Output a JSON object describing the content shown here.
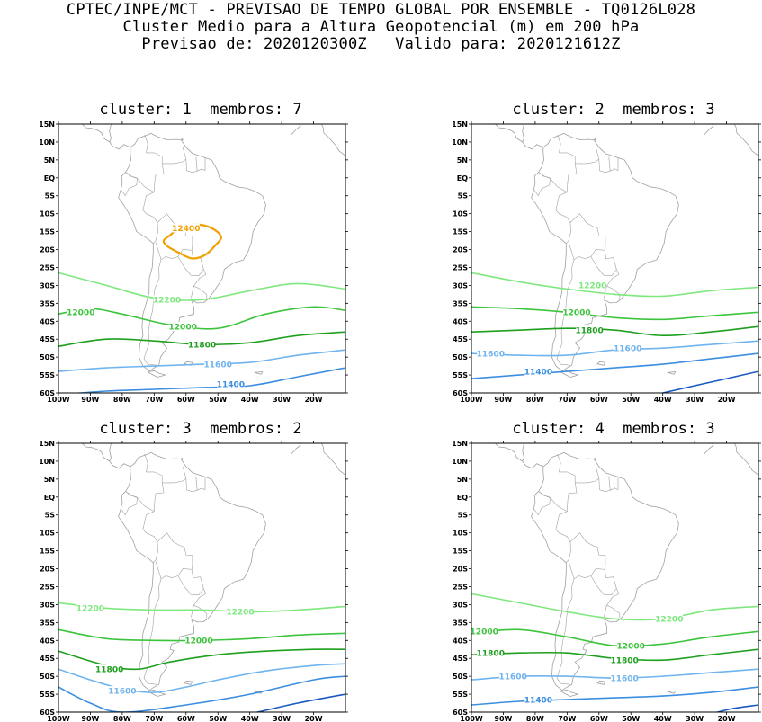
{
  "header": {
    "line1": "CPTEC/INPE/MCT - PREVISAO DE TEMPO GLOBAL POR ENSEMBLE - TQ0126L028",
    "line2": "Cluster Medio para a Altura Geopotencial (m) em 200 hPa",
    "line3": "Previsao de: 2020120300Z   Valido para: 2020121612Z"
  },
  "axes": {
    "lat_labels": [
      "15N",
      "10N",
      "5N",
      "EQ",
      "5S",
      "10S",
      "15S",
      "20S",
      "25S",
      "30S",
      "35S",
      "40S",
      "45S",
      "50S",
      "55S",
      "60S"
    ],
    "lon_labels": [
      "100W",
      "90W",
      "80W",
      "70W",
      "60W",
      "50W",
      "40W",
      "30W",
      "20W"
    ]
  },
  "colors": {
    "c12400": "#f0a000",
    "c12200": "#7ee87e",
    "c12000": "#3cc43c",
    "c11800": "#1ea01e",
    "c11600": "#6fb4ee",
    "c11400": "#3c8ee0",
    "c11200": "#1a5ac0",
    "coast": "#a0a0a0"
  },
  "panels": [
    {
      "title": "cluster: 1  membros: 7",
      "contours": [
        {
          "value": "12400",
          "color_key": "c12400",
          "closed": true,
          "points": [
            [
              -65,
              -16
            ],
            [
              -62,
              -14
            ],
            [
              -57,
              -13
            ],
            [
              -52,
              -14
            ],
            [
              -49,
              -16.5
            ],
            [
              -51,
              -19
            ],
            [
              -54,
              -21.5
            ],
            [
              -58,
              -22.5
            ],
            [
              -62,
              -21
            ],
            [
              -66,
              -19
            ],
            [
              -67,
              -17.5
            ]
          ]
        },
        {
          "value": "12200",
          "color_key": "c12200",
          "points": [
            [
              -100,
              -26.5
            ],
            [
              -85,
              -30
            ],
            [
              -70,
              -33.5
            ],
            [
              -55,
              -34
            ],
            [
              -40,
              -31.5
            ],
            [
              -25,
              -29.5
            ],
            [
              -10,
              -31
            ]
          ]
        },
        {
          "value": "12000",
          "color_key": "c12000",
          "points": [
            [
              -100,
              -38
            ],
            [
              -90,
              -36.5
            ],
            [
              -80,
              -38
            ],
            [
              -65,
              -41
            ],
            [
              -50,
              -42
            ],
            [
              -35,
              -38
            ],
            [
              -20,
              -36
            ],
            [
              -10,
              -37
            ]
          ]
        },
        {
          "value": "11800",
          "color_key": "c11800",
          "points": [
            [
              -100,
              -47
            ],
            [
              -85,
              -45
            ],
            [
              -70,
              -45.5
            ],
            [
              -55,
              -46.5
            ],
            [
              -40,
              -46
            ],
            [
              -25,
              -44
            ],
            [
              -10,
              -43
            ]
          ]
        },
        {
          "value": "11600",
          "color_key": "c11600",
          "points": [
            [
              -100,
              -54
            ],
            [
              -85,
              -53
            ],
            [
              -70,
              -52.5
            ],
            [
              -55,
              -52
            ],
            [
              -40,
              -51.5
            ],
            [
              -25,
              -49.5
            ],
            [
              -10,
              -48
            ]
          ]
        },
        {
          "value": "11400",
          "color_key": "c11400",
          "points": [
            [
              -100,
              -60.5
            ],
            [
              -85,
              -59.5
            ],
            [
              -70,
              -59
            ],
            [
              -55,
              -58.5
            ],
            [
              -40,
              -58
            ],
            [
              -25,
              -55.5
            ],
            [
              -10,
              -53
            ]
          ]
        }
      ],
      "labels": [
        {
          "text": "12400",
          "lon": -60,
          "lat": -14,
          "color_key": "c12400"
        },
        {
          "text": "12200",
          "lon": -66,
          "lat": -34,
          "color_key": "c12200"
        },
        {
          "text": "12000",
          "lon": -93,
          "lat": -37.5,
          "color_key": "c12000"
        },
        {
          "text": "12000",
          "lon": -61,
          "lat": -41.5,
          "color_key": "c12000"
        },
        {
          "text": "11800",
          "lon": -55,
          "lat": -46.5,
          "color_key": "c11800"
        },
        {
          "text": "11600",
          "lon": -50,
          "lat": -52,
          "color_key": "c11600"
        },
        {
          "text": "11400",
          "lon": -46,
          "lat": -57.5,
          "color_key": "c11400"
        }
      ]
    },
    {
      "title": "cluster: 2  membros: 3",
      "contours": [
        {
          "value": "12200",
          "color_key": "c12200",
          "points": [
            [
              -100,
              -26.5
            ],
            [
              -85,
              -29
            ],
            [
              -70,
              -31
            ],
            [
              -55,
              -32.5
            ],
            [
              -40,
              -33
            ],
            [
              -25,
              -31.5
            ],
            [
              -10,
              -30.5
            ]
          ]
        },
        {
          "value": "12000",
          "color_key": "c12000",
          "points": [
            [
              -100,
              -36
            ],
            [
              -85,
              -36.5
            ],
            [
              -70,
              -37.5
            ],
            [
              -55,
              -39
            ],
            [
              -40,
              -39.5
            ],
            [
              -25,
              -38.5
            ],
            [
              -10,
              -37.5
            ]
          ]
        },
        {
          "value": "11800",
          "color_key": "c11800",
          "points": [
            [
              -100,
              -43
            ],
            [
              -85,
              -42.5
            ],
            [
              -70,
              -42
            ],
            [
              -55,
              -42.5
            ],
            [
              -40,
              -44
            ],
            [
              -25,
              -43
            ],
            [
              -10,
              -41.5
            ]
          ]
        },
        {
          "value": "11600",
          "color_key": "c11600",
          "points": [
            [
              -100,
              -49
            ],
            [
              -85,
              -49.5
            ],
            [
              -70,
              -49.5
            ],
            [
              -55,
              -48
            ],
            [
              -40,
              -47.5
            ],
            [
              -25,
              -46.5
            ],
            [
              -10,
              -45.5
            ]
          ]
        },
        {
          "value": "11400",
          "color_key": "c11400",
          "points": [
            [
              -100,
              -56
            ],
            [
              -85,
              -55
            ],
            [
              -70,
              -54
            ],
            [
              -55,
              -53
            ],
            [
              -40,
              -52
            ],
            [
              -25,
              -50.5
            ],
            [
              -10,
              -49
            ]
          ]
        },
        {
          "value": "11200",
          "color_key": "c11200",
          "points": [
            [
              -40,
              -60
            ],
            [
              -30,
              -58
            ],
            [
              -20,
              -56
            ],
            [
              -10,
              -54
            ]
          ]
        }
      ],
      "labels": [
        {
          "text": "12200",
          "lon": -62,
          "lat": -30,
          "color_key": "c12200"
        },
        {
          "text": "12000",
          "lon": -67,
          "lat": -37.5,
          "color_key": "c12000"
        },
        {
          "text": "11800",
          "lon": -63,
          "lat": -42.5,
          "color_key": "c11800"
        },
        {
          "text": "11600",
          "lon": -94,
          "lat": -49,
          "color_key": "c11600"
        },
        {
          "text": "11600",
          "lon": -51,
          "lat": -47.5,
          "color_key": "c11600"
        },
        {
          "text": "11400",
          "lon": -79,
          "lat": -54,
          "color_key": "c11400"
        }
      ]
    },
    {
      "title": "cluster: 3  membros: 2",
      "contours": [
        {
          "value": "12200",
          "color_key": "c12200",
          "points": [
            [
              -100,
              -29.5
            ],
            [
              -85,
              -31
            ],
            [
              -70,
              -31.5
            ],
            [
              -55,
              -31.5
            ],
            [
              -40,
              -32
            ],
            [
              -25,
              -31.5
            ],
            [
              -10,
              -30.5
            ]
          ]
        },
        {
          "value": "12000",
          "color_key": "c12000",
          "points": [
            [
              -100,
              -37
            ],
            [
              -85,
              -39.5
            ],
            [
              -70,
              -40
            ],
            [
              -55,
              -40
            ],
            [
              -40,
              -39.5
            ],
            [
              -25,
              -38.5
            ],
            [
              -10,
              -38
            ]
          ]
        },
        {
          "value": "11800",
          "color_key": "c11800",
          "points": [
            [
              -100,
              -43
            ],
            [
              -85,
              -47
            ],
            [
              -75,
              -48
            ],
            [
              -65,
              -46
            ],
            [
              -50,
              -44
            ],
            [
              -35,
              -43
            ],
            [
              -20,
              -42.5
            ],
            [
              -10,
              -42.5
            ]
          ]
        },
        {
          "value": "11600",
          "color_key": "c11600",
          "points": [
            [
              -100,
              -48
            ],
            [
              -90,
              -51
            ],
            [
              -80,
              -53.5
            ],
            [
              -70,
              -54.5
            ],
            [
              -60,
              -53
            ],
            [
              -50,
              -51
            ],
            [
              -35,
              -48.5
            ],
            [
              -20,
              -47
            ],
            [
              -10,
              -46.5
            ]
          ]
        },
        {
          "value": "11400",
          "color_key": "c11400",
          "points": [
            [
              -100,
              -53
            ],
            [
              -90,
              -57.5
            ],
            [
              -80,
              -60
            ],
            [
              -60,
              -58
            ],
            [
              -40,
              -55
            ],
            [
              -20,
              -51
            ],
            [
              -10,
              -50
            ]
          ]
        },
        {
          "value": "11200",
          "color_key": "c11200",
          "points": [
            [
              -40,
              -60.5
            ],
            [
              -25,
              -57.5
            ],
            [
              -10,
              -55
            ]
          ]
        }
      ],
      "labels": [
        {
          "text": "12200",
          "lon": -90,
          "lat": -31,
          "color_key": "c12200"
        },
        {
          "text": "12200",
          "lon": -43,
          "lat": -32,
          "color_key": "c12200"
        },
        {
          "text": "12000",
          "lon": -56,
          "lat": -40,
          "color_key": "c12000"
        },
        {
          "text": "11800",
          "lon": -84,
          "lat": -48,
          "color_key": "c11800"
        },
        {
          "text": "11600",
          "lon": -80,
          "lat": -54,
          "color_key": "c11600"
        }
      ]
    },
    {
      "title": "cluster: 4  membros: 3",
      "contours": [
        {
          "value": "12200",
          "color_key": "c12200",
          "points": [
            [
              -100,
              -27
            ],
            [
              -85,
              -29.5
            ],
            [
              -70,
              -32
            ],
            [
              -55,
              -34
            ],
            [
              -40,
              -34
            ],
            [
              -25,
              -31.5
            ],
            [
              -10,
              -30.5
            ]
          ]
        },
        {
          "value": "12000",
          "color_key": "c12000",
          "points": [
            [
              -100,
              -38
            ],
            [
              -85,
              -37
            ],
            [
              -70,
              -39
            ],
            [
              -55,
              -41.5
            ],
            [
              -40,
              -41
            ],
            [
              -25,
              -39
            ],
            [
              -10,
              -37.5
            ]
          ]
        },
        {
          "value": "11800",
          "color_key": "c11800",
          "points": [
            [
              -100,
              -44
            ],
            [
              -85,
              -43.5
            ],
            [
              -70,
              -43.5
            ],
            [
              -55,
              -45
            ],
            [
              -40,
              -45.5
            ],
            [
              -25,
              -44
            ],
            [
              -10,
              -42.5
            ]
          ]
        },
        {
          "value": "11600",
          "color_key": "c11600",
          "points": [
            [
              -100,
              -51
            ],
            [
              -85,
              -50
            ],
            [
              -70,
              -50
            ],
            [
              -55,
              -50.5
            ],
            [
              -40,
              -50
            ],
            [
              -25,
              -49
            ],
            [
              -10,
              -48
            ]
          ]
        },
        {
          "value": "11400",
          "color_key": "c11400",
          "points": [
            [
              -100,
              -58
            ],
            [
              -85,
              -57
            ],
            [
              -70,
              -56.5
            ],
            [
              -55,
              -56
            ],
            [
              -40,
              -55.5
            ],
            [
              -25,
              -54.5
            ],
            [
              -10,
              -53
            ]
          ]
        },
        {
          "value": "11200",
          "color_key": "c11200",
          "points": [
            [
              -25,
              -60.5
            ],
            [
              -18,
              -59
            ],
            [
              -10,
              -58
            ]
          ]
        }
      ],
      "labels": [
        {
          "text": "12200",
          "lon": -38,
          "lat": -34,
          "color_key": "c12200"
        },
        {
          "text": "12000",
          "lon": -96,
          "lat": -37.5,
          "color_key": "c12000"
        },
        {
          "text": "12000",
          "lon": -50,
          "lat": -41.5,
          "color_key": "c12000"
        },
        {
          "text": "11800",
          "lon": -94,
          "lat": -43.5,
          "color_key": "c11800"
        },
        {
          "text": "11800",
          "lon": -52,
          "lat": -45.5,
          "color_key": "c11800"
        },
        {
          "text": "11600",
          "lon": -87,
          "lat": -50,
          "color_key": "c11600"
        },
        {
          "text": "11600",
          "lon": -52,
          "lat": -50.5,
          "color_key": "c11600"
        },
        {
          "text": "11400",
          "lon": -79,
          "lat": -56.5,
          "color_key": "c11400"
        }
      ]
    }
  ]
}
